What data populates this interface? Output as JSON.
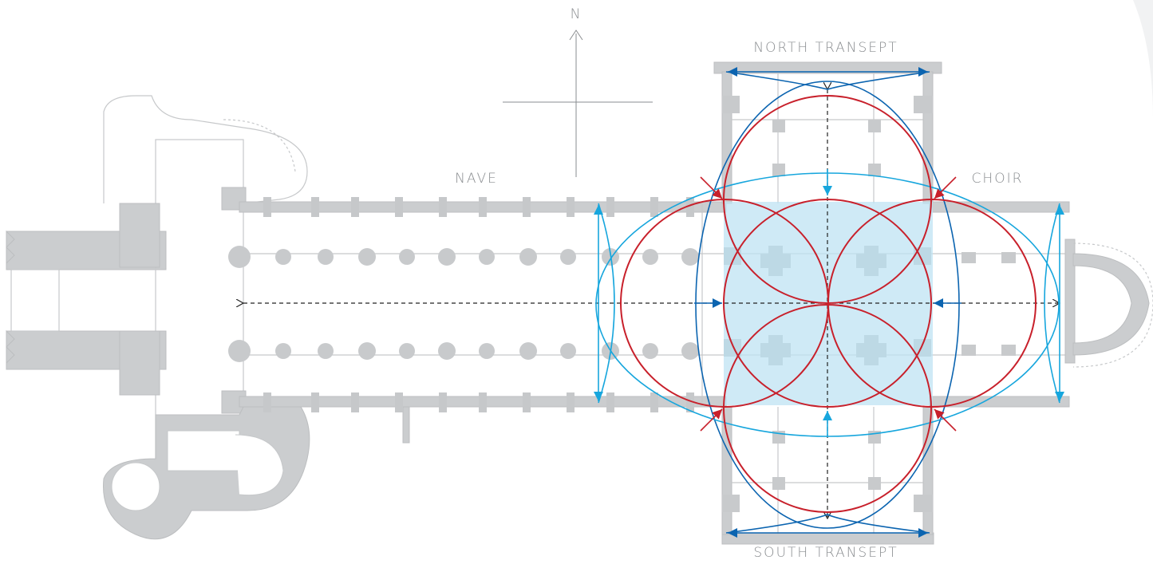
{
  "labels": {
    "north": "N",
    "nave": "NAVE",
    "north_transept": "NORTH TRANSEPT",
    "choir": "CHOIR",
    "south_transept": "SOUTH TRANSEPT"
  },
  "colors": {
    "plan_gray": "#c6c8ca",
    "red_circles": "#c8202b",
    "dark_blue_arcs": "#0b64b0",
    "light_blue_arcs": "#17a6dd",
    "crossing_fill": "#bfe3f3"
  }
}
